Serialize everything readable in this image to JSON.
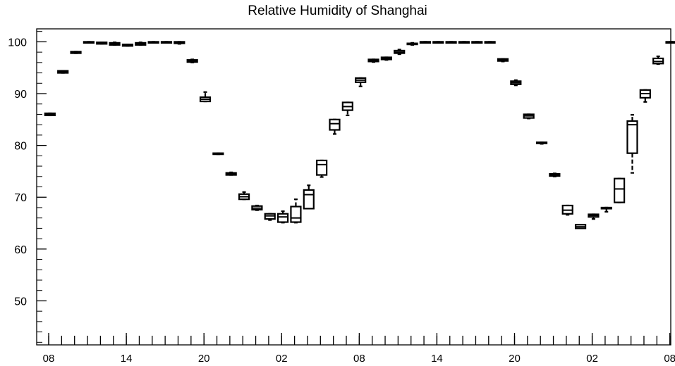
{
  "chart_data": {
    "type": "box",
    "title": "Relative Humidity of Shanghai",
    "xlabel": "",
    "ylabel": "",
    "ylim": [
      41.5,
      102.5
    ],
    "yticks": [
      50,
      60,
      70,
      80,
      90,
      100
    ],
    "ytick_labels": [
      "50",
      "60",
      "70",
      "80",
      "90",
      "100"
    ],
    "xlim": [
      0,
      49
    ],
    "xticks": [
      0.9,
      6.9,
      12.9,
      18.9,
      24.9,
      30.9,
      36.9,
      42.9,
      48.9
    ],
    "xtick_labels": [
      "08",
      "14",
      "20",
      "02",
      "08",
      "14",
      "20",
      "02",
      "08"
    ],
    "boxes": [
      {
        "x": 1,
        "min": 85.8,
        "q1": 85.8,
        "median": 86.0,
        "q3": 86.2,
        "max": 86.2
      },
      {
        "x": 2,
        "min": 94.0,
        "q1": 94.0,
        "median": 94.2,
        "q3": 94.4,
        "max": 94.4
      },
      {
        "x": 3,
        "min": 97.8,
        "q1": 97.8,
        "median": 98.0,
        "q3": 98.1,
        "max": 98.1
      },
      {
        "x": 4,
        "min": 99.8,
        "q1": 99.8,
        "median": 99.9,
        "q3": 100.0,
        "max": 100.0
      },
      {
        "x": 5,
        "min": 99.6,
        "q1": 99.6,
        "median": 99.8,
        "q3": 99.9,
        "max": 99.9
      },
      {
        "x": 6,
        "min": 99.4,
        "q1": 99.4,
        "median": 99.6,
        "q3": 99.8,
        "max": 99.9
      },
      {
        "x": 7,
        "min": 99.2,
        "q1": 99.2,
        "median": 99.3,
        "q3": 99.5,
        "max": 99.5
      },
      {
        "x": 8,
        "min": 99.4,
        "q1": 99.4,
        "median": 99.6,
        "q3": 99.8,
        "max": 99.9
      },
      {
        "x": 9,
        "min": 99.8,
        "q1": 99.8,
        "median": 99.9,
        "q3": 100.0,
        "max": 100.0
      },
      {
        "x": 10,
        "min": 99.9,
        "q1": 99.9,
        "median": 100.0,
        "q3": 100.0,
        "max": 100.0
      },
      {
        "x": 11,
        "min": 99.6,
        "q1": 99.7,
        "median": 99.9,
        "q3": 100.0,
        "max": 100.0
      },
      {
        "x": 12,
        "min": 96.0,
        "q1": 96.1,
        "median": 96.3,
        "q3": 96.5,
        "max": 96.6
      },
      {
        "x": 13,
        "min": 88.5,
        "q1": 88.5,
        "median": 88.9,
        "q3": 89.3,
        "max": 90.3
      },
      {
        "x": 14,
        "min": 78.3,
        "q1": 78.3,
        "median": 78.4,
        "q3": 78.5,
        "max": 78.5
      },
      {
        "x": 15,
        "min": 74.3,
        "q1": 74.3,
        "median": 74.5,
        "q3": 74.7,
        "max": 74.8
      },
      {
        "x": 16,
        "min": 69.6,
        "q1": 69.6,
        "median": 70.1,
        "q3": 70.6,
        "max": 71.0
      },
      {
        "x": 17,
        "min": 67.5,
        "q1": 67.6,
        "median": 67.9,
        "q3": 68.3,
        "max": 68.4
      },
      {
        "x": 18,
        "min": 65.6,
        "q1": 65.8,
        "median": 66.4,
        "q3": 66.8,
        "max": 66.8
      },
      {
        "x": 19,
        "min": 65.1,
        "q1": 65.2,
        "median": 66.2,
        "q3": 66.8,
        "max": 67.3
      },
      {
        "x": 20,
        "min": 65.1,
        "q1": 65.2,
        "median": 66.0,
        "q3": 68.2,
        "max": 69.6
      },
      {
        "x": 21,
        "min": 67.8,
        "q1": 67.8,
        "median": 70.5,
        "q3": 71.4,
        "max": 72.3
      },
      {
        "x": 22,
        "min": 73.9,
        "q1": 74.3,
        "median": 76.3,
        "q3": 77.1,
        "max": 77.1
      },
      {
        "x": 23,
        "min": 82.2,
        "q1": 83.0,
        "median": 84.2,
        "q3": 85.0,
        "max": 85.0
      },
      {
        "x": 24,
        "min": 85.8,
        "q1": 86.8,
        "median": 87.5,
        "q3": 88.3,
        "max": 88.3
      },
      {
        "x": 25,
        "min": 91.4,
        "q1": 92.2,
        "median": 92.6,
        "q3": 93.0,
        "max": 93.0
      },
      {
        "x": 26,
        "min": 96.1,
        "q1": 96.2,
        "median": 96.4,
        "q3": 96.6,
        "max": 96.6
      },
      {
        "x": 27,
        "min": 96.5,
        "q1": 96.6,
        "median": 96.8,
        "q3": 97.0,
        "max": 97.0
      },
      {
        "x": 28,
        "min": 97.6,
        "q1": 97.8,
        "median": 98.0,
        "q3": 98.3,
        "max": 98.5
      },
      {
        "x": 29,
        "min": 99.4,
        "q1": 99.5,
        "median": 99.6,
        "q3": 99.7,
        "max": 99.8
      },
      {
        "x": 30,
        "min": 99.9,
        "q1": 99.9,
        "median": 100.0,
        "q3": 100.0,
        "max": 100.0
      },
      {
        "x": 31,
        "min": 99.9,
        "q1": 99.9,
        "median": 100.0,
        "q3": 100.0,
        "max": 100.0
      },
      {
        "x": 32,
        "min": 99.9,
        "q1": 99.9,
        "median": 100.0,
        "q3": 100.0,
        "max": 100.0
      },
      {
        "x": 33,
        "min": 99.9,
        "q1": 99.9,
        "median": 100.0,
        "q3": 100.0,
        "max": 100.0
      },
      {
        "x": 34,
        "min": 99.9,
        "q1": 99.9,
        "median": 100.0,
        "q3": 100.0,
        "max": 100.0
      },
      {
        "x": 35,
        "min": 99.9,
        "q1": 99.9,
        "median": 100.0,
        "q3": 100.0,
        "max": 100.0
      },
      {
        "x": 36,
        "min": 96.2,
        "q1": 96.3,
        "median": 96.5,
        "q3": 96.7,
        "max": 96.7
      },
      {
        "x": 37,
        "min": 91.6,
        "q1": 91.8,
        "median": 92.1,
        "q3": 92.4,
        "max": 92.6
      },
      {
        "x": 38,
        "min": 85.2,
        "q1": 85.3,
        "median": 85.7,
        "q3": 86.0,
        "max": 86.0
      },
      {
        "x": 39,
        "min": 80.3,
        "q1": 80.4,
        "median": 80.5,
        "q3": 80.6,
        "max": 80.6
      },
      {
        "x": 40,
        "min": 74.0,
        "q1": 74.1,
        "median": 74.3,
        "q3": 74.5,
        "max": 74.6
      },
      {
        "x": 41,
        "min": 66.6,
        "q1": 66.8,
        "median": 67.5,
        "q3": 68.4,
        "max": 68.4
      },
      {
        "x": 42,
        "min": 64.0,
        "q1": 64.0,
        "median": 64.3,
        "q3": 64.7,
        "max": 64.7
      },
      {
        "x": 43,
        "min": 65.8,
        "q1": 66.2,
        "median": 66.5,
        "q3": 66.7,
        "max": 66.7
      },
      {
        "x": 44,
        "min": 67.2,
        "q1": 67.9,
        "median": 67.9,
        "q3": 68.0,
        "max": 68.0
      },
      {
        "x": 45,
        "min": 69.0,
        "q1": 69.0,
        "median": 71.6,
        "q3": 73.6,
        "max": 73.6
      },
      {
        "x": 46,
        "min": 74.7,
        "q1": 78.5,
        "median": 84.0,
        "q3": 84.7,
        "max": 85.9
      },
      {
        "x": 47,
        "min": 88.4,
        "q1": 89.2,
        "median": 90.0,
        "q3": 90.7,
        "max": 90.7
      },
      {
        "x": 48,
        "min": 95.7,
        "q1": 95.8,
        "median": 96.2,
        "q3": 96.8,
        "max": 97.2
      },
      {
        "x": 49,
        "min": 99.9,
        "q1": 99.9,
        "median": 100.0,
        "q3": 100.0,
        "max": 100.0
      }
    ]
  }
}
